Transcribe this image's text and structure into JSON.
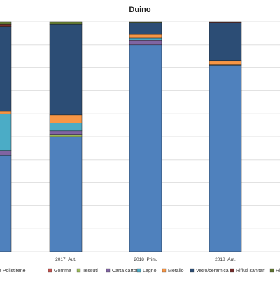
{
  "chart_data": {
    "type": "bar",
    "stacked": true,
    "title": "Duino",
    "xlabel": "",
    "ylabel": "",
    "ylim": [
      0,
      100
    ],
    "grid": true,
    "legend_position": "bottom",
    "categories": [
      "",
      "2017_Aut.",
      "2018_Prim.",
      "2018_Aut."
    ],
    "series": [
      {
        "name": "Plastica e Polistirene",
        "color": "#4f81bd",
        "values": [
          42,
          50,
          90,
          81
        ]
      },
      {
        "name": "Gomma",
        "color": "#c0504d",
        "values": [
          0,
          0,
          0,
          0
        ]
      },
      {
        "name": "Tessuti",
        "color": "#9bbb59",
        "values": [
          0,
          1,
          0,
          0
        ]
      },
      {
        "name": "Carta cartone",
        "color": "#8064a2",
        "values": [
          2,
          1.5,
          2,
          0
        ]
      },
      {
        "name": "Legno",
        "color": "#4bacc6",
        "values": [
          16,
          3.5,
          1,
          0.5
        ]
      },
      {
        "name": "Metallo",
        "color": "#f79646",
        "values": [
          1,
          3.5,
          1.5,
          1.5
        ]
      },
      {
        "name": "Vetro/ceramica",
        "color": "#2c4d75",
        "values": [
          37,
          39.5,
          5,
          16.5
        ]
      },
      {
        "name": "Rifiuti sanitari",
        "color": "#772c2a",
        "values": [
          1,
          0,
          0,
          0.5
        ]
      },
      {
        "name": "Rifiuti medici",
        "color": "#5f7530",
        "values": [
          1,
          1,
          0.5,
          0
        ]
      }
    ]
  },
  "legend_items": [
    {
      "label": "e Polistirene",
      "color": "#4f81bd"
    },
    {
      "label": "Gomma",
      "color": "#c0504d"
    },
    {
      "label": "Tessuti",
      "color": "#9bbb59"
    },
    {
      "label": "Carta cartone",
      "color": "#8064a2"
    },
    {
      "label": "Legno",
      "color": "#4bacc6"
    },
    {
      "label": "Metallo",
      "color": "#f79646"
    },
    {
      "label": "Vetro/ceramica",
      "color": "#2c4d75"
    },
    {
      "label": "Rifiuti sanitari",
      "color": "#772c2a"
    },
    {
      "label": "Rifiuti medi",
      "color": "#5f7530"
    }
  ]
}
